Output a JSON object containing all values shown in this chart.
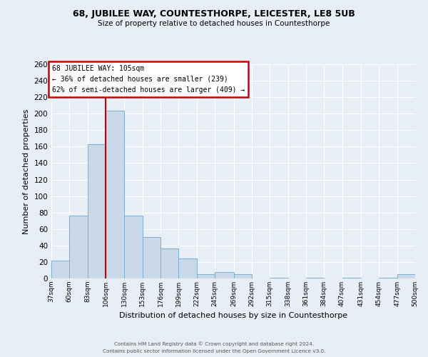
{
  "title": "68, JUBILEE WAY, COUNTESTHORPE, LEICESTER, LE8 5UB",
  "subtitle": "Size of property relative to detached houses in Countesthorpe",
  "xlabel": "Distribution of detached houses by size in Countesthorpe",
  "ylabel": "Number of detached properties",
  "bar_color": "#c9d9e8",
  "bar_edge_color": "#7bafd4",
  "bg_color": "#e8eef5",
  "grid_color": "#ffffff",
  "vline_x": 106,
  "vline_color": "#cc0000",
  "annotation_title": "68 JUBILEE WAY: 105sqm",
  "annotation_line2": "← 36% of detached houses are smaller (239)",
  "annotation_line3": "62% of semi-detached houses are larger (409) →",
  "annotation_box_color": "#cc0000",
  "footer1": "Contains HM Land Registry data © Crown copyright and database right 2024.",
  "footer2": "Contains public sector information licensed under the Open Government Licence v3.0.",
  "bin_edges": [
    37,
    60,
    83,
    106,
    130,
    153,
    176,
    199,
    222,
    245,
    269,
    292,
    315,
    338,
    361,
    384,
    407,
    431,
    454,
    477,
    500
  ],
  "bin_labels": [
    "37sqm",
    "60sqm",
    "83sqm",
    "106sqm",
    "130sqm",
    "153sqm",
    "176sqm",
    "199sqm",
    "222sqm",
    "245sqm",
    "269sqm",
    "292sqm",
    "315sqm",
    "338sqm",
    "361sqm",
    "384sqm",
    "407sqm",
    "431sqm",
    "454sqm",
    "477sqm",
    "500sqm"
  ],
  "counts": [
    22,
    76,
    163,
    204,
    76,
    50,
    36,
    24,
    5,
    8,
    5,
    0,
    1,
    0,
    1,
    0,
    1,
    0,
    1,
    5
  ],
  "ylim": [
    0,
    260
  ],
  "yticks": [
    0,
    20,
    40,
    60,
    80,
    100,
    120,
    140,
    160,
    180,
    200,
    220,
    240,
    260
  ]
}
